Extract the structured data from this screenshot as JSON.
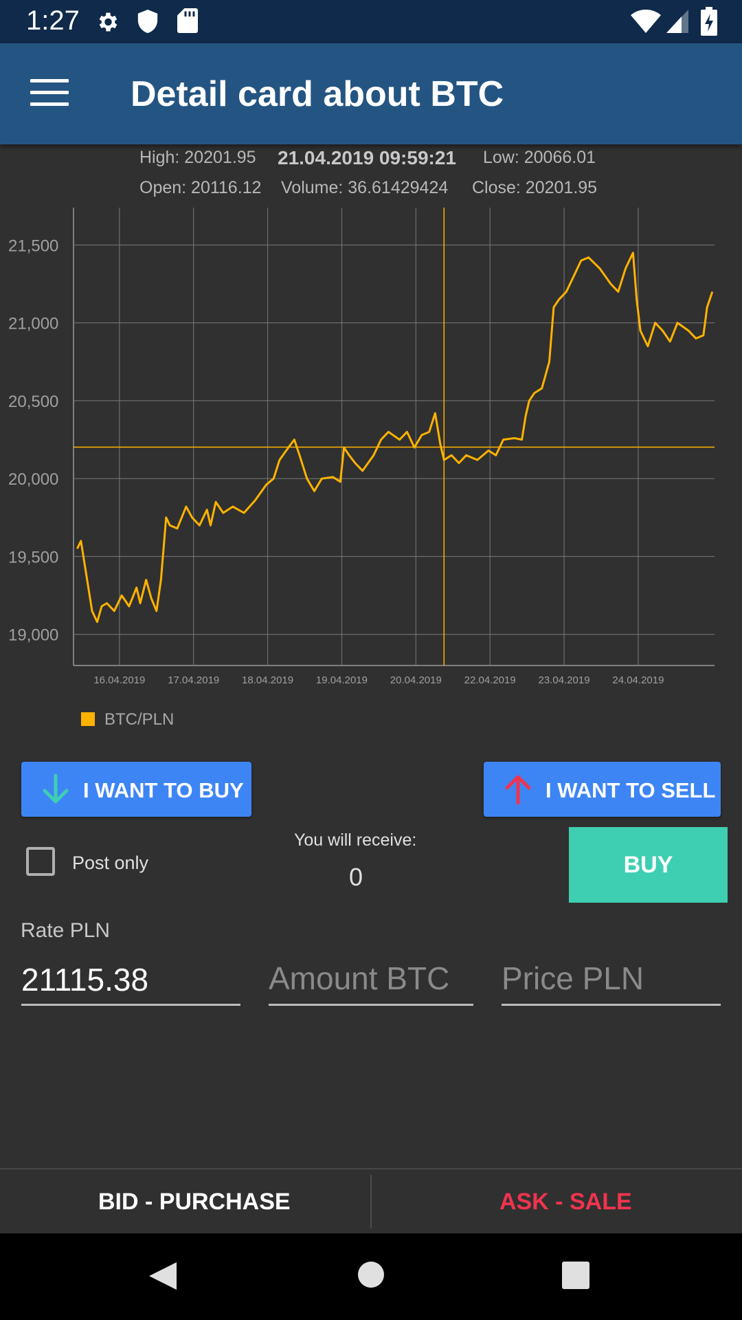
{
  "status_bar": {
    "time": "1:27",
    "icons": [
      "gear-icon",
      "shield-icon",
      "sd-card-icon",
      "wifi-icon",
      "signal-icon",
      "battery-charging-icon"
    ]
  },
  "app_bar": {
    "title": "Detail card about BTC",
    "menu_icon": "hamburger-menu-icon"
  },
  "ohlc": {
    "high": "High: 20201.95",
    "datetime": "21.04.2019 09:59:21",
    "low": "Low: 20066.01",
    "open": "Open: 20116.12",
    "volume": "Volume: 36.61429424",
    "close": "Close: 20201.95"
  },
  "chart_data": {
    "type": "line",
    "series": [
      {
        "name": "BTC/PLN",
        "color": "#ffb300",
        "points": [
          [
            15.45,
            19550
          ],
          [
            15.5,
            19600
          ],
          [
            15.55,
            19450
          ],
          [
            15.6,
            19300
          ],
          [
            15.65,
            19150
          ],
          [
            15.72,
            19080
          ],
          [
            15.78,
            19180
          ],
          [
            15.85,
            19200
          ],
          [
            15.95,
            19150
          ],
          [
            16.05,
            19250
          ],
          [
            16.15,
            19180
          ],
          [
            16.25,
            19300
          ],
          [
            16.3,
            19200
          ],
          [
            16.38,
            19350
          ],
          [
            16.45,
            19230
          ],
          [
            16.52,
            19150
          ],
          [
            16.58,
            19350
          ],
          [
            16.65,
            19750
          ],
          [
            16.7,
            19700
          ],
          [
            16.8,
            19680
          ],
          [
            16.92,
            19820
          ],
          [
            17.0,
            19750
          ],
          [
            17.1,
            19700
          ],
          [
            17.2,
            19800
          ],
          [
            17.25,
            19700
          ],
          [
            17.32,
            19850
          ],
          [
            17.42,
            19780
          ],
          [
            17.55,
            19820
          ],
          [
            17.7,
            19780
          ],
          [
            17.85,
            19860
          ],
          [
            18.0,
            19960
          ],
          [
            18.1,
            20000
          ],
          [
            18.18,
            20120
          ],
          [
            18.3,
            20200
          ],
          [
            18.38,
            20250
          ],
          [
            18.45,
            20150
          ],
          [
            18.55,
            20000
          ],
          [
            18.65,
            19920
          ],
          [
            18.75,
            20000
          ],
          [
            18.9,
            20010
          ],
          [
            19.0,
            19980
          ],
          [
            19.05,
            20200
          ],
          [
            19.12,
            20150
          ],
          [
            19.2,
            20100
          ],
          [
            19.3,
            20050
          ],
          [
            19.45,
            20150
          ],
          [
            19.55,
            20250
          ],
          [
            19.65,
            20300
          ],
          [
            19.8,
            20250
          ],
          [
            19.9,
            20300
          ],
          [
            20.0,
            20200
          ],
          [
            20.1,
            20280
          ],
          [
            20.2,
            20300
          ],
          [
            20.28,
            20420
          ],
          [
            20.35,
            20220
          ],
          [
            20.4,
            20120
          ],
          [
            20.5,
            20150
          ],
          [
            20.6,
            20100
          ],
          [
            20.7,
            20150
          ],
          [
            20.85,
            20120
          ],
          [
            21.0,
            20180
          ],
          [
            21.1,
            20150
          ],
          [
            21.2,
            20250
          ],
          [
            21.35,
            20260
          ],
          [
            21.45,
            20250
          ],
          [
            21.5,
            20400
          ],
          [
            21.55,
            20500
          ],
          [
            21.62,
            20550
          ],
          [
            21.72,
            20580
          ],
          [
            21.82,
            20750
          ],
          [
            21.88,
            21100
          ],
          [
            21.95,
            21150
          ],
          [
            22.05,
            21200
          ],
          [
            22.15,
            21300
          ],
          [
            22.25,
            21400
          ],
          [
            22.35,
            21420
          ],
          [
            22.5,
            21350
          ],
          [
            22.65,
            21250
          ],
          [
            22.75,
            21200
          ],
          [
            22.85,
            21350
          ],
          [
            22.95,
            21450
          ],
          [
            23.0,
            21150
          ],
          [
            23.05,
            20950
          ],
          [
            23.15,
            20850
          ],
          [
            23.25,
            21000
          ],
          [
            23.35,
            20950
          ],
          [
            23.45,
            20880
          ],
          [
            23.55,
            21000
          ],
          [
            23.7,
            20950
          ],
          [
            23.8,
            20900
          ],
          [
            23.9,
            20920
          ],
          [
            23.95,
            21100
          ],
          [
            24.02,
            21200
          ]
        ]
      }
    ],
    "x_ticks": [
      "16.04.2019",
      "17.04.2019",
      "18.04.2019",
      "19.04.2019",
      "20.04.2019",
      "22.04.2019",
      "23.04.2019",
      "24.04.2019"
    ],
    "y_ticks": [
      "19,000",
      "19,500",
      "20,000",
      "20,500",
      "21,000",
      "21,500"
    ],
    "crosshair": {
      "x": 20.4,
      "y": 20201.95
    },
    "xlim": [
      15.4,
      24.05
    ],
    "ylim": [
      18800,
      21740
    ],
    "grid": true,
    "legend_position": "bottom-left"
  },
  "legend": {
    "label": "BTC/PLN",
    "color": "#ffb300"
  },
  "actions": {
    "buy_mode": "I WANT TO BUY",
    "sell_mode": "I WANT TO SELL"
  },
  "order": {
    "post_only_label": "Post only",
    "post_only_checked": false,
    "receive_label": "You will receive:",
    "receive_value": "0",
    "submit_label": "BUY",
    "rate_label": "Rate PLN",
    "rate_value": "21115.38",
    "amount_placeholder": "Amount BTC",
    "price_placeholder": "Price PLN"
  },
  "tabs": {
    "bid": "BID - PURCHASE",
    "ask": "ASK - SALE"
  },
  "colors": {
    "accent_green": "#3ecfb2",
    "accent_blue": "#3d85f5",
    "ask_red": "#f0344e",
    "line": "#ffb300"
  }
}
